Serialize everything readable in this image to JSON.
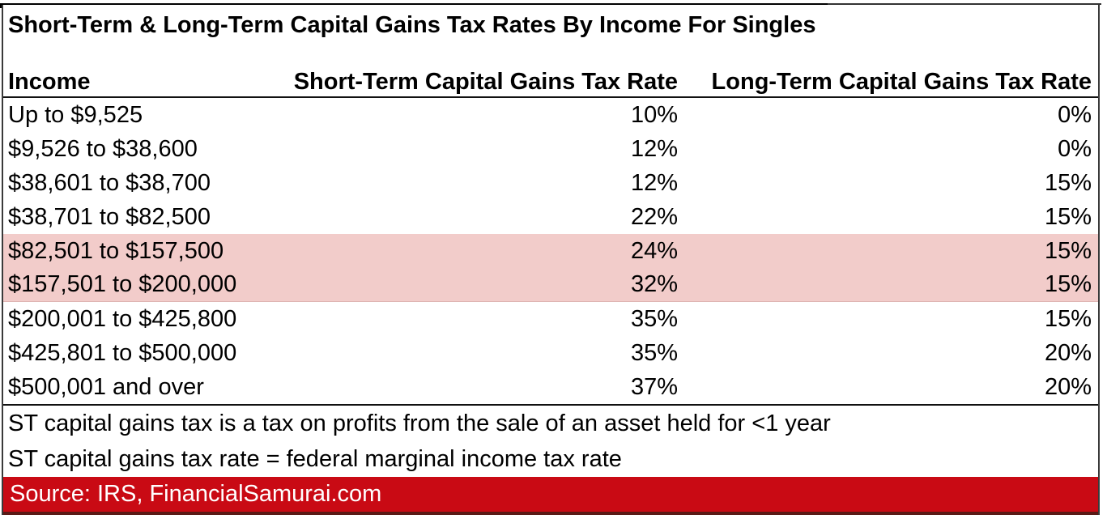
{
  "chart_data": {
    "type": "table",
    "title": "Short-Term & Long-Term Capital Gains Tax Rates By Income For Singles",
    "columns": [
      "Income",
      "Short-Term Capital Gains Tax Rate",
      "Long-Term Capital Gains Tax Rate"
    ],
    "rows": [
      [
        "Up to $9,525",
        "10%",
        "0%"
      ],
      [
        "$9,526 to $38,600",
        "12%",
        "0%"
      ],
      [
        "$38,601 to $38,700",
        "12%",
        "15%"
      ],
      [
        "$38,701 to $82,500",
        "22%",
        "15%"
      ],
      [
        "$82,501 to $157,500",
        "24%",
        "15%"
      ],
      [
        "$157,501 to $200,000",
        "32%",
        "15%"
      ],
      [
        "$200,001 to $425,800",
        "35%",
        "15%"
      ],
      [
        "$425,801 to $500,000",
        "35%",
        "20%"
      ],
      [
        "$500,001 and over",
        "37%",
        "20%"
      ]
    ],
    "highlighted_rows": [
      4,
      5
    ],
    "notes": [
      "ST capital gains tax is a tax on profits from the sale of an asset held for <1 year",
      "ST capital gains tax rate = federal marginal income tax rate"
    ],
    "source": "Source: IRS, FinancialSamurai.com",
    "layout_hints": {
      "grid": false,
      "legend": "none"
    }
  },
  "colors": {
    "highlight_fill": "#f2ccca",
    "source_bg": "#c90a14",
    "source_text": "#ffffff",
    "border": "#000000"
  }
}
